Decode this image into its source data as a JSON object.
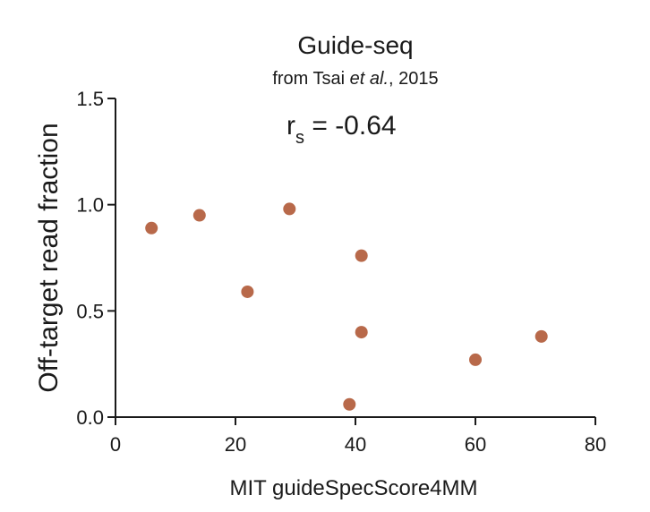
{
  "chart_data": {
    "type": "scatter",
    "title": "Guide-seq",
    "subtitle": {
      "prefix": "from Tsai ",
      "italic": "et al.",
      "suffix": ", 2015"
    },
    "annotation": {
      "base": "r",
      "subscript": "s",
      "text": " = -0.64"
    },
    "xlabel": "MIT guideSpecScore4MM",
    "ylabel": "Off-target read fraction",
    "xlim": [
      0,
      80
    ],
    "ylim": [
      0,
      1.5
    ],
    "xticks": [
      0,
      20,
      40,
      60,
      80
    ],
    "xtick_labels": [
      "0",
      "20",
      "40",
      "60",
      "80"
    ],
    "yticks": [
      0,
      0.5,
      1.0,
      1.5
    ],
    "ytick_labels": [
      "0.0",
      "0.5",
      "1.0",
      "1.5"
    ],
    "grid": false,
    "marker_color": "#b8694a",
    "points": [
      {
        "x": 6,
        "y": 0.89
      },
      {
        "x": 14,
        "y": 0.95
      },
      {
        "x": 22,
        "y": 0.59
      },
      {
        "x": 29,
        "y": 0.98
      },
      {
        "x": 41,
        "y": 0.76
      },
      {
        "x": 41,
        "y": 0.4
      },
      {
        "x": 39,
        "y": 0.06
      },
      {
        "x": 60,
        "y": 0.27
      },
      {
        "x": 71,
        "y": 0.38
      }
    ]
  }
}
